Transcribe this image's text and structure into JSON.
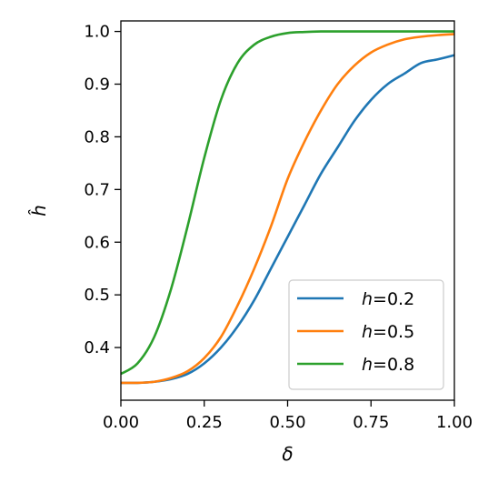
{
  "chart_data": {
    "type": "line",
    "title": "",
    "xlabel": "δ",
    "ylabel": "ĥ",
    "xlim": [
      0.0,
      1.0
    ],
    "ylim": [
      0.3,
      1.02
    ],
    "xticks": [
      0.0,
      0.25,
      0.5,
      0.75,
      1.0
    ],
    "xtick_labels": [
      "0.00",
      "0.25",
      "0.50",
      "0.75",
      "1.00"
    ],
    "yticks": [
      0.4,
      0.5,
      0.6,
      0.7,
      0.8,
      0.9,
      1.0
    ],
    "ytick_labels": [
      "0.4",
      "0.5",
      "0.6",
      "0.7",
      "0.8",
      "0.9",
      "1.0"
    ],
    "grid": false,
    "legend_position": "lower right",
    "x": [
      0.0,
      0.05,
      0.1,
      0.15,
      0.2,
      0.25,
      0.3,
      0.35,
      0.4,
      0.45,
      0.5,
      0.55,
      0.6,
      0.65,
      0.7,
      0.75,
      0.8,
      0.85,
      0.9,
      0.95,
      1.0
    ],
    "series": [
      {
        "name": "h=0.2",
        "var": "h",
        "value_label": "=0.2",
        "color": "#1f77b4",
        "values": [
          0.333,
          0.333,
          0.335,
          0.34,
          0.35,
          0.37,
          0.4,
          0.44,
          0.49,
          0.55,
          0.61,
          0.67,
          0.73,
          0.78,
          0.83,
          0.87,
          0.9,
          0.92,
          0.94,
          0.947,
          0.955
        ]
      },
      {
        "name": "h=0.5",
        "var": "h",
        "value_label": "=0.5",
        "color": "#ff7f0e",
        "values": [
          0.333,
          0.333,
          0.335,
          0.342,
          0.355,
          0.38,
          0.42,
          0.48,
          0.55,
          0.63,
          0.72,
          0.79,
          0.85,
          0.9,
          0.935,
          0.96,
          0.975,
          0.985,
          0.99,
          0.993,
          0.995
        ]
      },
      {
        "name": "h=0.8",
        "var": "h",
        "value_label": "=0.8",
        "color": "#2ca02c",
        "values": [
          0.35,
          0.37,
          0.42,
          0.51,
          0.63,
          0.76,
          0.87,
          0.94,
          0.975,
          0.99,
          0.997,
          0.999,
          1.0,
          1.0,
          1.0,
          1.0,
          1.0,
          1.0,
          1.0,
          1.0,
          1.0
        ]
      }
    ]
  }
}
